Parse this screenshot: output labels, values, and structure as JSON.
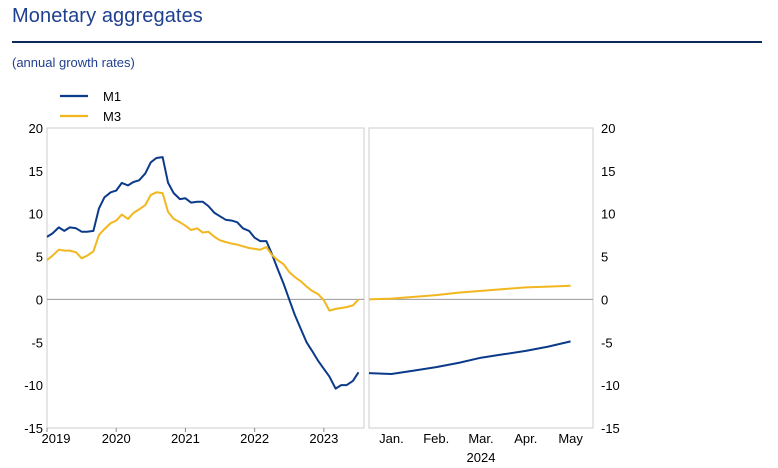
{
  "page": {
    "title": "Monetary aggregates",
    "subtitle": "(annual growth rates)"
  },
  "colors": {
    "M1": "#0c3a8a",
    "M3": "#f2b71f",
    "zero_line": "#999999",
    "frame": "#cccccc"
  },
  "chart_data": [
    {
      "type": "line",
      "title": "",
      "xlabel": "",
      "ylabel": "",
      "ylim": [
        -15,
        20
      ],
      "yticks": [
        "20",
        "15",
        "10",
        "5",
        "0",
        "-5",
        "-10",
        "-15"
      ],
      "xticks": [
        "2019",
        "2020",
        "2021",
        "2022",
        "2023"
      ],
      "grid": false,
      "legend": "top-left",
      "series": [
        {
          "name": "M1",
          "x": [
            2019.0,
            2019.08,
            2019.17,
            2019.25,
            2019.33,
            2019.42,
            2019.5,
            2019.58,
            2019.67,
            2019.75,
            2019.83,
            2019.92,
            2020.0,
            2020.08,
            2020.17,
            2020.25,
            2020.33,
            2020.42,
            2020.5,
            2020.58,
            2020.67,
            2020.75,
            2020.83,
            2020.92,
            2021.0,
            2021.08,
            2021.17,
            2021.25,
            2021.33,
            2021.42,
            2021.5,
            2021.58,
            2021.67,
            2021.75,
            2021.83,
            2021.92,
            2022.0,
            2022.08,
            2022.17,
            2022.25,
            2022.33,
            2022.42,
            2022.5,
            2022.58,
            2022.67,
            2022.75,
            2022.83,
            2022.92,
            2023.0,
            2023.08,
            2023.17,
            2023.25,
            2023.33,
            2023.42,
            2023.5
          ],
          "values": [
            7.3,
            7.7,
            8.4,
            8.0,
            8.4,
            8.3,
            7.9,
            7.9,
            8.0,
            10.6,
            11.9,
            12.5,
            12.7,
            13.6,
            13.3,
            13.7,
            13.9,
            14.7,
            16.0,
            16.5,
            16.6,
            13.6,
            12.4,
            11.7,
            11.8,
            11.3,
            11.4,
            11.4,
            10.9,
            10.1,
            9.7,
            9.3,
            9.2,
            9.0,
            8.3,
            8.0,
            7.2,
            6.8,
            6.8,
            5.3,
            3.6,
            1.8,
            0.0,
            -1.8,
            -3.5,
            -5.0,
            -6.0,
            -7.2,
            -8.1,
            -9.0,
            -10.4,
            -10.0,
            -10.0,
            -9.5,
            -8.5
          ]
        },
        {
          "name": "M3",
          "x": [
            2019.0,
            2019.08,
            2019.17,
            2019.25,
            2019.33,
            2019.42,
            2019.5,
            2019.58,
            2019.67,
            2019.75,
            2019.83,
            2019.92,
            2020.0,
            2020.08,
            2020.17,
            2020.25,
            2020.33,
            2020.42,
            2020.5,
            2020.58,
            2020.67,
            2020.75,
            2020.83,
            2020.92,
            2021.0,
            2021.08,
            2021.17,
            2021.25,
            2021.33,
            2021.42,
            2021.5,
            2021.58,
            2021.67,
            2021.75,
            2021.83,
            2021.92,
            2022.0,
            2022.08,
            2022.17,
            2022.25,
            2022.33,
            2022.42,
            2022.5,
            2022.58,
            2022.67,
            2022.75,
            2022.83,
            2022.92,
            2023.0,
            2023.08,
            2023.17,
            2023.25,
            2023.33,
            2023.42,
            2023.5
          ],
          "values": [
            4.6,
            5.1,
            5.8,
            5.7,
            5.7,
            5.5,
            4.8,
            5.1,
            5.6,
            7.5,
            8.2,
            8.9,
            9.2,
            9.9,
            9.4,
            10.1,
            10.5,
            11.0,
            12.2,
            12.5,
            12.4,
            10.2,
            9.4,
            9.0,
            8.6,
            8.1,
            8.3,
            7.8,
            7.9,
            7.3,
            6.9,
            6.7,
            6.5,
            6.4,
            6.2,
            6.0,
            5.9,
            5.8,
            6.1,
            5.2,
            4.6,
            4.1,
            3.2,
            2.6,
            2.1,
            1.5,
            1.0,
            0.6,
            -0.1,
            -1.3,
            -1.1,
            -1.0,
            -0.9,
            -0.7,
            0.0
          ]
        }
      ]
    },
    {
      "type": "line",
      "title": "",
      "xlabel": "2024",
      "ylabel": "",
      "ylim": [
        -15,
        20
      ],
      "yticks": [
        "20",
        "15",
        "10",
        "5",
        "0",
        "-5",
        "-10",
        "-15"
      ],
      "xticks": [
        "Jan.",
        "Feb.",
        "Mar.",
        "Apr.",
        "May"
      ],
      "grid": false,
      "series": [
        {
          "name": "M1",
          "x": [
            0.5,
            1.0,
            1.5,
            2.0,
            2.5,
            3.0,
            3.5,
            4.0,
            4.5,
            5.0
          ],
          "values": [
            -8.6,
            -8.7,
            -8.3,
            -7.9,
            -7.4,
            -6.8,
            -6.4,
            -6.0,
            -5.5,
            -4.9
          ]
        },
        {
          "name": "M3",
          "x": [
            0.5,
            1.0,
            1.5,
            2.0,
            2.5,
            3.0,
            3.5,
            4.0,
            4.5,
            5.0
          ],
          "values": [
            0.0,
            0.1,
            0.3,
            0.5,
            0.8,
            1.0,
            1.2,
            1.4,
            1.5,
            1.6
          ]
        }
      ]
    }
  ]
}
